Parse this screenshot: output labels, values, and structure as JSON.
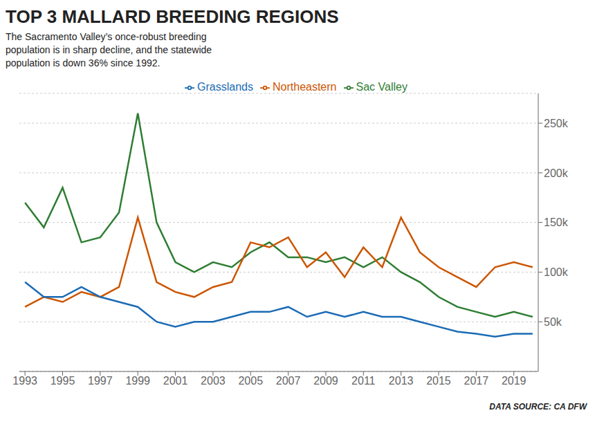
{
  "chart_data": {
    "type": "line",
    "title": "TOP 3 MALLARD BREEDING REGIONS",
    "subtitle": "The Sacramento Valley’s once-robust breeding\npopulation is in sharp decline, and the statewide\npopulation is down 36% since 1992.",
    "annotations": [
      "DATA SOURCE: CA DFW"
    ],
    "x": [
      1993,
      1994,
      1995,
      1996,
      1997,
      1998,
      1999,
      2000,
      2001,
      2002,
      2003,
      2004,
      2005,
      2006,
      2007,
      2008,
      2009,
      2010,
      2011,
      2012,
      2013,
      2014,
      2015,
      2016,
      2017,
      2018,
      2019,
      2020
    ],
    "series": [
      {
        "name": "Sac Valley",
        "color": "#2e7d32",
        "values": [
          170000,
          145000,
          185000,
          130000,
          135000,
          160000,
          260000,
          150000,
          110000,
          100000,
          110000,
          105000,
          120000,
          130000,
          115000,
          115000,
          110000,
          115000,
          105000,
          115000,
          100000,
          90000,
          75000,
          65000,
          60000,
          55000,
          60000,
          55000
        ]
      },
      {
        "name": "Northeastern",
        "color": "#cc5500",
        "values": [
          65000,
          75000,
          70000,
          80000,
          75000,
          85000,
          155000,
          90000,
          80000,
          75000,
          85000,
          90000,
          130000,
          125000,
          135000,
          105000,
          120000,
          95000,
          125000,
          105000,
          155000,
          120000,
          105000,
          95000,
          85000,
          105000,
          110000,
          105000
        ]
      },
      {
        "name": "Grasslands",
        "color": "#1a6bb5",
        "values": [
          90000,
          75000,
          75000,
          85000,
          75000,
          70000,
          65000,
          50000,
          45000,
          50000,
          50000,
          55000,
          60000,
          60000,
          65000,
          55000,
          60000,
          55000,
          60000,
          55000,
          55000,
          50000,
          45000,
          40000,
          38000,
          35000,
          38000,
          38000
        ]
      }
    ],
    "xlim": [
      1992.7,
      2020.3
    ],
    "xticks": [
      1993,
      1995,
      1997,
      1999,
      2001,
      2003,
      2005,
      2007,
      2009,
      2011,
      2013,
      2015,
      2017,
      2019
    ],
    "ylim": [
      0,
      280000
    ],
    "yticks": [
      {
        "value": 50000,
        "label": "50k"
      },
      {
        "value": 100000,
        "label": "100k"
      },
      {
        "value": 150000,
        "label": "150k"
      },
      {
        "value": 200000,
        "label": "200k"
      },
      {
        "value": 250000,
        "label": "250k"
      }
    ],
    "grid": true,
    "legend": "top"
  }
}
